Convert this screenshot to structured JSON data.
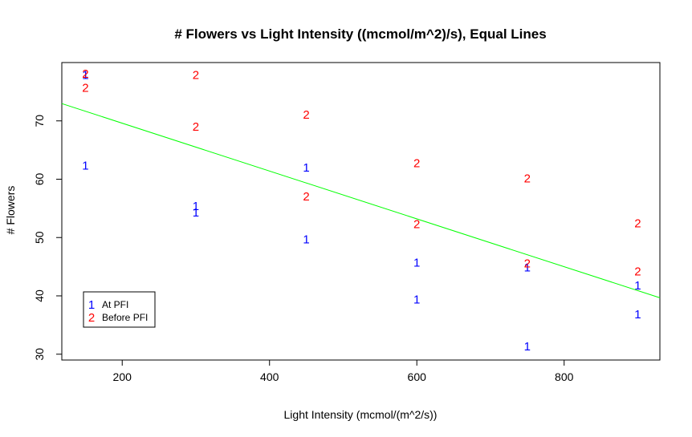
{
  "chart_data": {
    "type": "scatter",
    "title": "# Flowers vs Light Intensity ((mcmol/m^2)/s), Equal Lines",
    "xlabel": "Light Intensity (mcmol/(m^2/s))",
    "ylabel": "# Flowers",
    "xlim": [
      118,
      930
    ],
    "ylim": [
      29,
      80
    ],
    "x_ticks": [
      200,
      400,
      600,
      800
    ],
    "y_ticks": [
      30,
      40,
      50,
      60,
      70
    ],
    "x_tick_labels": [
      "200",
      "400",
      "600",
      "800"
    ],
    "y_tick_labels": [
      "30",
      "40",
      "50",
      "60",
      "70"
    ],
    "grid": false,
    "legend_position": "bottom-left",
    "colors": {
      "series1": "#0000ff",
      "series2": "#ff0000",
      "line": "#00ff00"
    },
    "series": [
      {
        "name": "At PFI",
        "symbol": "1",
        "color": "#0000ff",
        "x": [
          150,
          150,
          300,
          300,
          450,
          450,
          600,
          600,
          750,
          750,
          900,
          900
        ],
        "y": [
          77.8,
          62.3,
          55.3,
          54.2,
          61.9,
          49.6,
          45.6,
          39.3,
          44.8,
          31.3,
          41.7,
          36.8
        ]
      },
      {
        "name": "Before PFI",
        "symbol": "2",
        "color": "#ff0000",
        "x": [
          150,
          150,
          300,
          300,
          450,
          450,
          600,
          600,
          750,
          750,
          900,
          900
        ],
        "y": [
          78.0,
          75.6,
          77.8,
          68.9,
          71.0,
          57.0,
          62.7,
          52.2,
          60.1,
          45.5,
          52.4,
          44.1
        ]
      }
    ],
    "fit_line": {
      "intercept": 77.8,
      "slope": -0.041
    }
  }
}
